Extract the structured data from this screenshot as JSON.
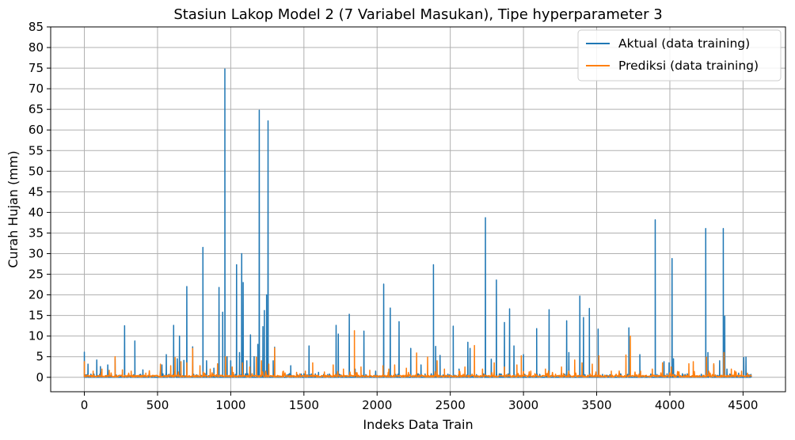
{
  "chart_data": {
    "type": "line",
    "title": "Stasiun Lakop Model 2 (7 Variabel Masukan), Tipe hyperparameter 3",
    "xlabel": "Indeks Data Train",
    "ylabel": "Curah Hujan (mm)",
    "xlim": [
      -230,
      4790
    ],
    "ylim": [
      -3.5,
      85
    ],
    "xticks": [
      0,
      500,
      1000,
      1500,
      2000,
      2500,
      3000,
      3500,
      4000,
      4500
    ],
    "yticks": [
      0,
      5,
      10,
      15,
      20,
      25,
      30,
      35,
      40,
      45,
      50,
      55,
      60,
      65,
      70,
      75,
      80,
      85
    ],
    "grid": true,
    "legend": "top-right",
    "x_count": 4560,
    "series": [
      {
        "name": "Aktual (data training)",
        "color": "#1f77b4",
        "peaks": [
          [
            0,
            6.1
          ],
          [
            25,
            3.2
          ],
          [
            85,
            4.2
          ],
          [
            110,
            2.6
          ],
          [
            160,
            3.0
          ],
          [
            210,
            4.5
          ],
          [
            275,
            12.5
          ],
          [
            345,
            8.8
          ],
          [
            400,
            1.8
          ],
          [
            530,
            3.0
          ],
          [
            560,
            5.5
          ],
          [
            610,
            12.6
          ],
          [
            635,
            4.5
          ],
          [
            650,
            10.0
          ],
          [
            680,
            4.1
          ],
          [
            700,
            22.0
          ],
          [
            740,
            7.4
          ],
          [
            810,
            31.5
          ],
          [
            835,
            4.0
          ],
          [
            885,
            2.2
          ],
          [
            920,
            21.8
          ],
          [
            945,
            15.8
          ],
          [
            960,
            74.8
          ],
          [
            975,
            5.0
          ],
          [
            1000,
            4.0
          ],
          [
            1040,
            27.3
          ],
          [
            1060,
            6.0
          ],
          [
            1075,
            30.0
          ],
          [
            1085,
            23.0
          ],
          [
            1110,
            4.0
          ],
          [
            1135,
            10.3
          ],
          [
            1160,
            5.0
          ],
          [
            1185,
            8.0
          ],
          [
            1195,
            64.8
          ],
          [
            1220,
            12.3
          ],
          [
            1230,
            16.2
          ],
          [
            1245,
            20.0
          ],
          [
            1255,
            62.2
          ],
          [
            1290,
            4.0
          ],
          [
            1300,
            7.3
          ],
          [
            1410,
            2.8
          ],
          [
            1535,
            7.6
          ],
          [
            1600,
            1.2
          ],
          [
            1720,
            12.6
          ],
          [
            1735,
            10.5
          ],
          [
            1810,
            15.3
          ],
          [
            1850,
            2.0
          ],
          [
            1910,
            11.2
          ],
          [
            1990,
            1.5
          ],
          [
            2045,
            22.6
          ],
          [
            2090,
            16.8
          ],
          [
            2150,
            13.5
          ],
          [
            2230,
            7.0
          ],
          [
            2300,
            3.0
          ],
          [
            2385,
            27.3
          ],
          [
            2400,
            7.5
          ],
          [
            2430,
            5.3
          ],
          [
            2520,
            12.4
          ],
          [
            2560,
            2.0
          ],
          [
            2620,
            8.5
          ],
          [
            2635,
            7.0
          ],
          [
            2740,
            38.7
          ],
          [
            2780,
            4.4
          ],
          [
            2815,
            23.6
          ],
          [
            2870,
            13.3
          ],
          [
            2905,
            16.6
          ],
          [
            2935,
            7.6
          ],
          [
            3000,
            5.5
          ],
          [
            3090,
            11.8
          ],
          [
            3175,
            16.4
          ],
          [
            3295,
            13.7
          ],
          [
            3310,
            6.0
          ],
          [
            3385,
            19.7
          ],
          [
            3410,
            14.5
          ],
          [
            3450,
            16.7
          ],
          [
            3510,
            11.7
          ],
          [
            3720,
            12.0
          ],
          [
            3795,
            5.5
          ],
          [
            3900,
            38.2
          ],
          [
            3960,
            3.8
          ],
          [
            3995,
            3.5
          ],
          [
            4015,
            28.8
          ],
          [
            4025,
            4.5
          ],
          [
            4245,
            36.1
          ],
          [
            4260,
            6.0
          ],
          [
            4300,
            3.0
          ],
          [
            4340,
            4.0
          ],
          [
            4365,
            36.1
          ],
          [
            4375,
            14.8
          ],
          [
            4390,
            2.0
          ],
          [
            4470,
            1.0
          ],
          [
            4505,
            4.8
          ],
          [
            4520,
            4.9
          ],
          [
            4540,
            0.6
          ]
        ]
      },
      {
        "name": "Prediksi (data training)",
        "color": "#ff7f0e",
        "peaks": [
          [
            0,
            3.8
          ],
          [
            60,
            1.5
          ],
          [
            120,
            2.0
          ],
          [
            170,
            1.7
          ],
          [
            210,
            5.0
          ],
          [
            260,
            1.8
          ],
          [
            320,
            1.5
          ],
          [
            420,
            1.0
          ],
          [
            520,
            3.2
          ],
          [
            590,
            2.8
          ],
          [
            620,
            4.8
          ],
          [
            660,
            3.8
          ],
          [
            700,
            3.5
          ],
          [
            740,
            7.0
          ],
          [
            790,
            2.8
          ],
          [
            860,
            2.0
          ],
          [
            910,
            3.3
          ],
          [
            965,
            5.0
          ],
          [
            1010,
            2.5
          ],
          [
            1080,
            3.5
          ],
          [
            1130,
            2.5
          ],
          [
            1175,
            4.9
          ],
          [
            1210,
            4.0
          ],
          [
            1260,
            3.2
          ],
          [
            1300,
            7.1
          ],
          [
            1360,
            1.5
          ],
          [
            1450,
            1.2
          ],
          [
            1510,
            1.5
          ],
          [
            1560,
            3.5
          ],
          [
            1640,
            1.3
          ],
          [
            1700,
            3.0
          ],
          [
            1770,
            2.0
          ],
          [
            1845,
            11.3
          ],
          [
            1890,
            2.5
          ],
          [
            1950,
            1.7
          ],
          [
            2040,
            2.8
          ],
          [
            2080,
            2.0
          ],
          [
            2120,
            3.0
          ],
          [
            2200,
            2.2
          ],
          [
            2270,
            5.9
          ],
          [
            2345,
            4.9
          ],
          [
            2410,
            4.0
          ],
          [
            2460,
            2.0
          ],
          [
            2560,
            1.5
          ],
          [
            2600,
            2.5
          ],
          [
            2665,
            7.7
          ],
          [
            2720,
            2.0
          ],
          [
            2800,
            3.5
          ],
          [
            2870,
            2.5
          ],
          [
            2955,
            3.0
          ],
          [
            2985,
            5.2
          ],
          [
            3050,
            1.5
          ],
          [
            3150,
            2.0
          ],
          [
            3260,
            2.5
          ],
          [
            3350,
            4.2
          ],
          [
            3400,
            3.5
          ],
          [
            3470,
            3.2
          ],
          [
            3515,
            5.2
          ],
          [
            3600,
            1.5
          ],
          [
            3700,
            5.4
          ],
          [
            3730,
            10.0
          ],
          [
            3800,
            1.5
          ],
          [
            3880,
            2.0
          ],
          [
            3950,
            3.5
          ],
          [
            4010,
            2.5
          ],
          [
            4130,
            3.3
          ],
          [
            4160,
            3.8
          ],
          [
            4250,
            4.9
          ],
          [
            4300,
            3.3
          ],
          [
            4370,
            6.0
          ],
          [
            4420,
            2.0
          ],
          [
            4490,
            1.5
          ],
          [
            4530,
            1.0
          ]
        ]
      }
    ]
  }
}
